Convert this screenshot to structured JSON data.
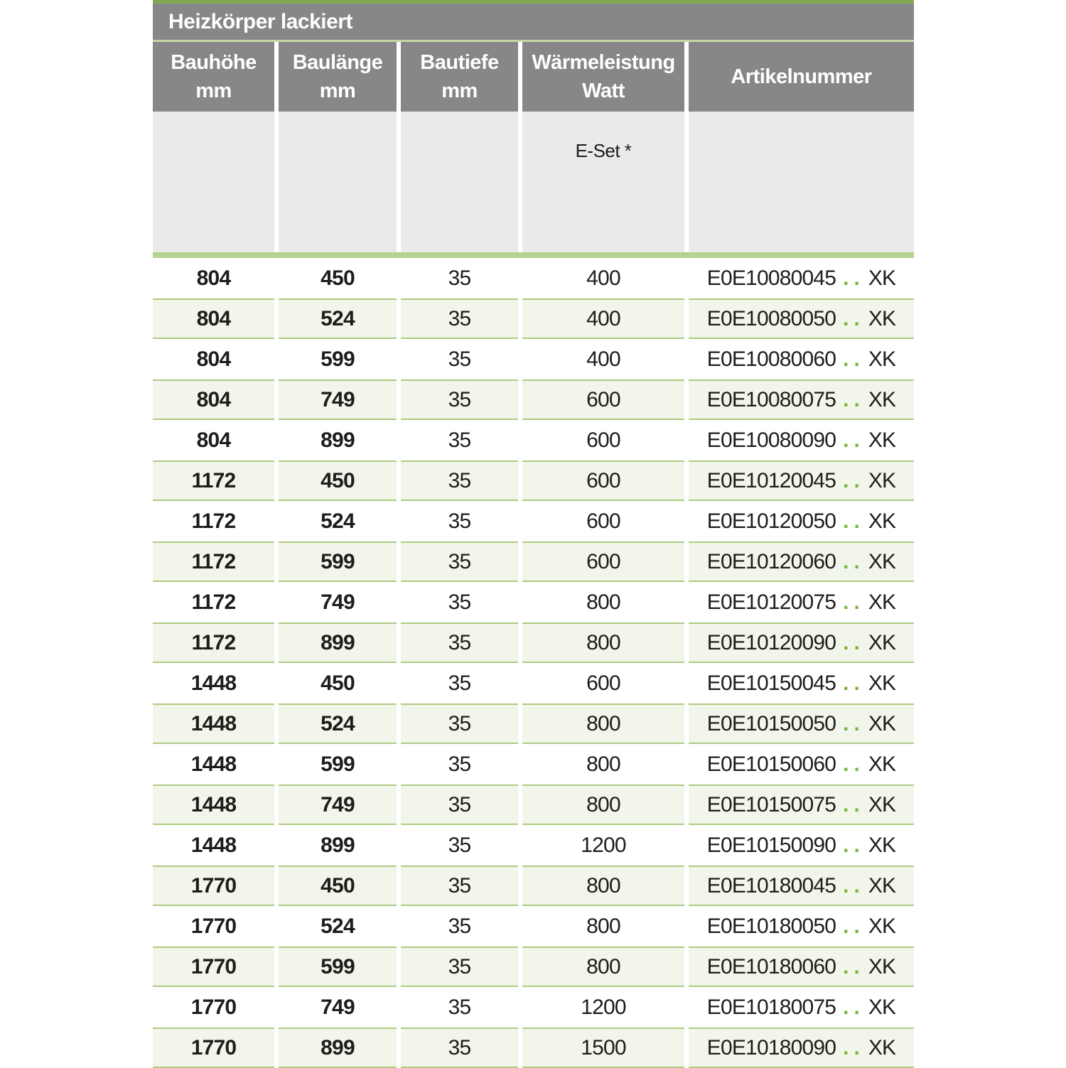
{
  "table": {
    "title": "Heizkörper lackiert",
    "columns": [
      {
        "label_line1": "Bauhöhe",
        "label_line2": "mm"
      },
      {
        "label_line1": "Baulänge",
        "label_line2": "mm"
      },
      {
        "label_line1": "Bautiefe",
        "label_line2": "mm"
      },
      {
        "label_line1": "Wärmeleistung",
        "label_line2": "Watt"
      },
      {
        "label_line1": "Artikelnummer",
        "label_line2": ""
      }
    ],
    "subheader": {
      "e_set_label": "E-Set *"
    },
    "rows": [
      {
        "bauhoehe": "804",
        "baulaenge": "450",
        "bautiefe": "35",
        "watt": "400",
        "artnr_base": "E0E10080045",
        "artnr_dots": "..",
        "artnr_suffix": "XK"
      },
      {
        "bauhoehe": "804",
        "baulaenge": "524",
        "bautiefe": "35",
        "watt": "400",
        "artnr_base": "E0E10080050",
        "artnr_dots": "..",
        "artnr_suffix": "XK"
      },
      {
        "bauhoehe": "804",
        "baulaenge": "599",
        "bautiefe": "35",
        "watt": "400",
        "artnr_base": "E0E10080060",
        "artnr_dots": "..",
        "artnr_suffix": "XK"
      },
      {
        "bauhoehe": "804",
        "baulaenge": "749",
        "bautiefe": "35",
        "watt": "600",
        "artnr_base": "E0E10080075",
        "artnr_dots": "..",
        "artnr_suffix": "XK"
      },
      {
        "bauhoehe": "804",
        "baulaenge": "899",
        "bautiefe": "35",
        "watt": "600",
        "artnr_base": "E0E10080090",
        "artnr_dots": "..",
        "artnr_suffix": "XK"
      },
      {
        "bauhoehe": "1172",
        "baulaenge": "450",
        "bautiefe": "35",
        "watt": "600",
        "artnr_base": "E0E10120045",
        "artnr_dots": "..",
        "artnr_suffix": "XK"
      },
      {
        "bauhoehe": "1172",
        "baulaenge": "524",
        "bautiefe": "35",
        "watt": "600",
        "artnr_base": "E0E10120050",
        "artnr_dots": "..",
        "artnr_suffix": "XK"
      },
      {
        "bauhoehe": "1172",
        "baulaenge": "599",
        "bautiefe": "35",
        "watt": "600",
        "artnr_base": "E0E10120060",
        "artnr_dots": "..",
        "artnr_suffix": "XK"
      },
      {
        "bauhoehe": "1172",
        "baulaenge": "749",
        "bautiefe": "35",
        "watt": "800",
        "artnr_base": "E0E10120075",
        "artnr_dots": "..",
        "artnr_suffix": "XK"
      },
      {
        "bauhoehe": "1172",
        "baulaenge": "899",
        "bautiefe": "35",
        "watt": "800",
        "artnr_base": "E0E10120090",
        "artnr_dots": "..",
        "artnr_suffix": "XK"
      },
      {
        "bauhoehe": "1448",
        "baulaenge": "450",
        "bautiefe": "35",
        "watt": "600",
        "artnr_base": "E0E10150045",
        "artnr_dots": "..",
        "artnr_suffix": "XK"
      },
      {
        "bauhoehe": "1448",
        "baulaenge": "524",
        "bautiefe": "35",
        "watt": "800",
        "artnr_base": "E0E10150050",
        "artnr_dots": "..",
        "artnr_suffix": "XK"
      },
      {
        "bauhoehe": "1448",
        "baulaenge": "599",
        "bautiefe": "35",
        "watt": "800",
        "artnr_base": "E0E10150060",
        "artnr_dots": "..",
        "artnr_suffix": "XK"
      },
      {
        "bauhoehe": "1448",
        "baulaenge": "749",
        "bautiefe": "35",
        "watt": "800",
        "artnr_base": "E0E10150075",
        "artnr_dots": "..",
        "artnr_suffix": "XK"
      },
      {
        "bauhoehe": "1448",
        "baulaenge": "899",
        "bautiefe": "35",
        "watt": "1200",
        "artnr_base": "E0E10150090",
        "artnr_dots": "..",
        "artnr_suffix": "XK"
      },
      {
        "bauhoehe": "1770",
        "baulaenge": "450",
        "bautiefe": "35",
        "watt": "800",
        "artnr_base": "E0E10180045",
        "artnr_dots": "..",
        "artnr_suffix": "XK"
      },
      {
        "bauhoehe": "1770",
        "baulaenge": "524",
        "bautiefe": "35",
        "watt": "800",
        "artnr_base": "E0E10180050",
        "artnr_dots": "..",
        "artnr_suffix": "XK"
      },
      {
        "bauhoehe": "1770",
        "baulaenge": "599",
        "bautiefe": "35",
        "watt": "800",
        "artnr_base": "E0E10180060",
        "artnr_dots": "..",
        "artnr_suffix": "XK"
      },
      {
        "bauhoehe": "1770",
        "baulaenge": "749",
        "bautiefe": "35",
        "watt": "1200",
        "artnr_base": "E0E10180075",
        "artnr_dots": "..",
        "artnr_suffix": "XK"
      },
      {
        "bauhoehe": "1770",
        "baulaenge": "899",
        "bautiefe": "35",
        "watt": "1500",
        "artnr_base": "E0E10180090",
        "artnr_dots": "..",
        "artnr_suffix": "XK"
      }
    ]
  },
  "colors": {
    "header_gray": "#878787",
    "subheader_gray": "#eaeaea",
    "accent_green": "#7fa850",
    "divider_green": "#c5d6a4",
    "bar_green": "#b5d28e",
    "row_tint": "#f2f6ea",
    "row_border": "#adca81",
    "dots_green": "#7ab33e",
    "text_dark": "#1d1d1b"
  }
}
